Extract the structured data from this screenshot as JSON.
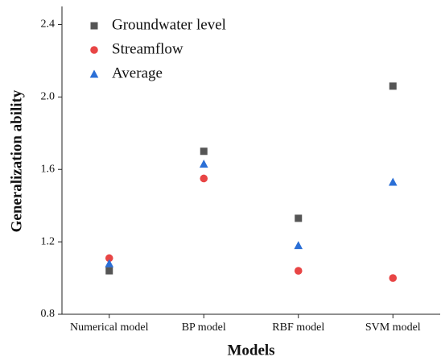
{
  "chart_data": {
    "type": "scatter",
    "x_label": "Models",
    "y_label": "Generalization ability",
    "categories": [
      "Numerical model",
      "BP model",
      "RBF model",
      "SVM model"
    ],
    "series": [
      {
        "name": "Groundwater level",
        "color": "#555555",
        "marker": "square",
        "values": [
          1.04,
          1.7,
          1.33,
          2.06
        ]
      },
      {
        "name": "Streamflow",
        "color": "#e84545",
        "marker": "circle",
        "values": [
          1.11,
          1.55,
          1.04,
          1.0
        ]
      },
      {
        "name": "Average",
        "color": "#2b6fd6",
        "marker": "triangle",
        "values": [
          1.08,
          1.63,
          1.18,
          1.53
        ]
      }
    ],
    "ylim": [
      0.8,
      2.5
    ],
    "yticks": [
      0.8,
      1.2,
      1.6,
      {
        "value": 2,
        "label": "2.0"
      },
      2.4
    ],
    "legend": "upper-left",
    "grid": false
  }
}
